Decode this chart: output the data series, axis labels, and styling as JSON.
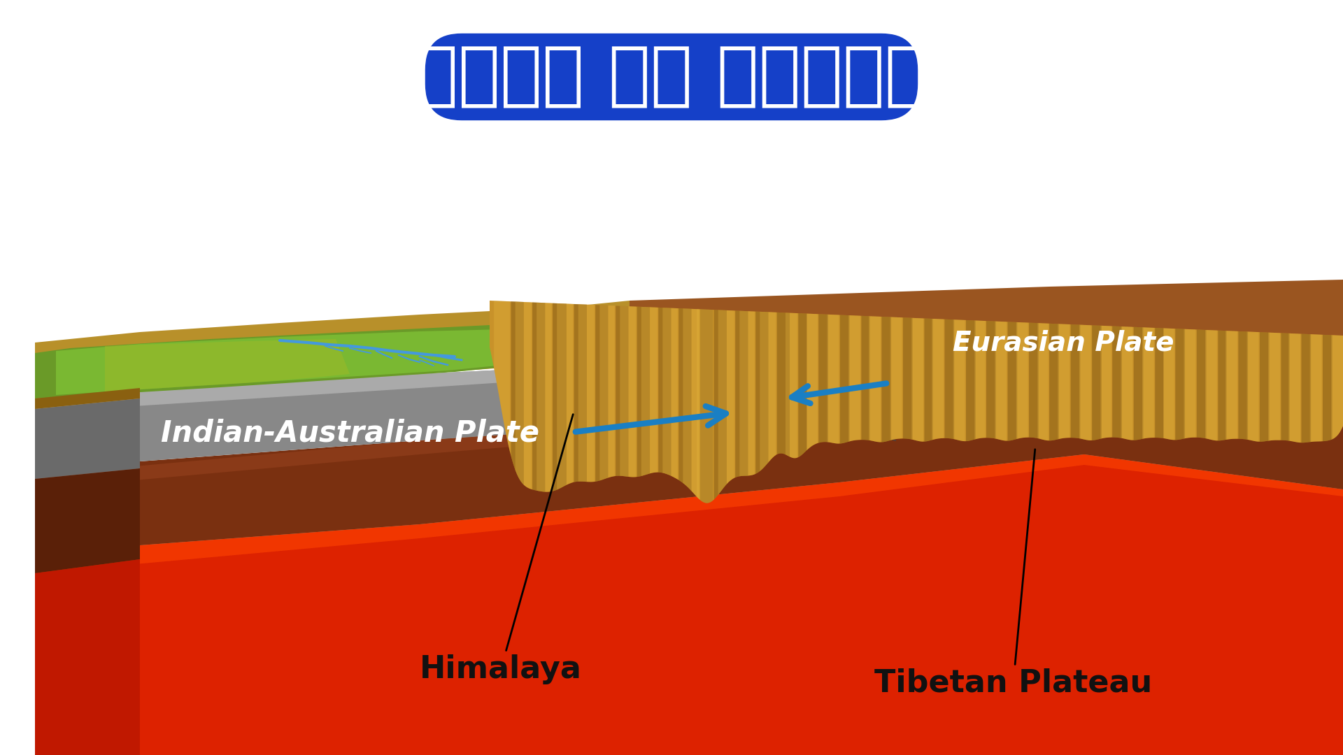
{
  "title_hindi": "हिमालय का निर्माण",
  "title_color": "#ffffff",
  "title_bg_color": "#1540c8",
  "label_himalaya": "Himalaya",
  "label_tibetan": "Tibetan Plateau",
  "label_indian": "Indian-Australian Plate",
  "label_eurasian": "Eurasian Plate",
  "bg_color": "#ffffff",
  "label_color": "#111111",
  "white_label_color": "#ffffff",
  "arrow_color": "#1a7fc4",
  "label_fontsize": 26,
  "title_fontsize": 72,
  "mountain_color": "#C8922A",
  "mountain_shadow": "#7a5010",
  "green_color": "#5a8820",
  "green_light": "#7ab030",
  "terrain_brown": "#9a7520",
  "gray_layer": "#888888",
  "gray_dark": "#666666",
  "brown_layer": "#7a3010",
  "brown_dark": "#5a1a00",
  "mantle_color": "#dd2200",
  "mantle_light": "#ff5500",
  "river_color": "#4499dd"
}
